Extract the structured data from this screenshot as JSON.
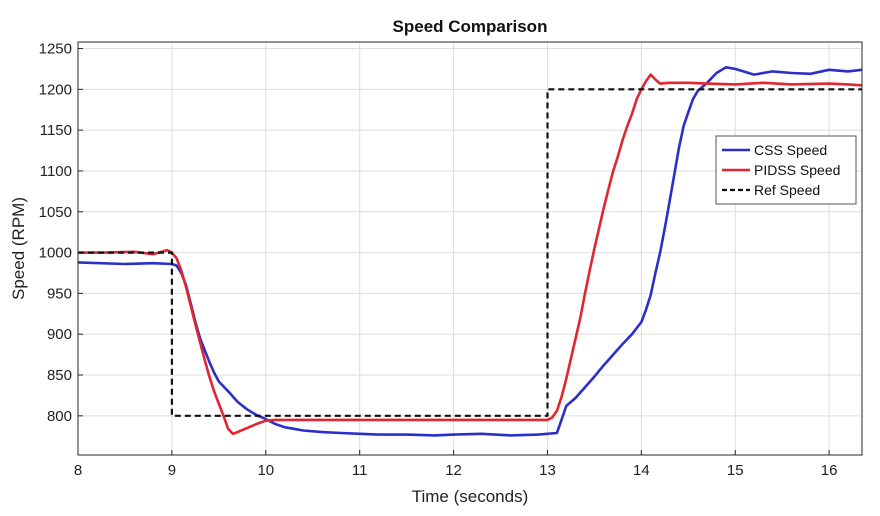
{
  "chart_data": {
    "type": "line",
    "title": "Speed Comparison",
    "xlabel": "Time (seconds)",
    "ylabel": "Speed (RPM)",
    "xlim": [
      8,
      16.35
    ],
    "ylim": [
      752,
      1258
    ],
    "xticks": [
      8,
      9,
      10,
      11,
      12,
      13,
      14,
      15,
      16
    ],
    "yticks": [
      800,
      850,
      900,
      950,
      1000,
      1050,
      1100,
      1150,
      1200,
      1250
    ],
    "grid": true,
    "legend_position": "right",
    "series": [
      {
        "name": "CSS Speed",
        "color": "#2b2fc9",
        "style": "solid",
        "points": [
          [
            8.0,
            988
          ],
          [
            8.5,
            986
          ],
          [
            8.8,
            987
          ],
          [
            9.0,
            986
          ],
          [
            9.05,
            984
          ],
          [
            9.1,
            975
          ],
          [
            9.15,
            960
          ],
          [
            9.2,
            938
          ],
          [
            9.25,
            915
          ],
          [
            9.3,
            895
          ],
          [
            9.35,
            880
          ],
          [
            9.4,
            866
          ],
          [
            9.45,
            853
          ],
          [
            9.5,
            842
          ],
          [
            9.6,
            830
          ],
          [
            9.7,
            817
          ],
          [
            9.8,
            808
          ],
          [
            9.9,
            801
          ],
          [
            10.0,
            796
          ],
          [
            10.1,
            790
          ],
          [
            10.2,
            786
          ],
          [
            10.4,
            782
          ],
          [
            10.6,
            780
          ],
          [
            10.8,
            779
          ],
          [
            11.0,
            778
          ],
          [
            11.2,
            777
          ],
          [
            11.5,
            777
          ],
          [
            11.8,
            776
          ],
          [
            12.0,
            777
          ],
          [
            12.3,
            778
          ],
          [
            12.6,
            776
          ],
          [
            12.9,
            777
          ],
          [
            13.1,
            779
          ],
          [
            13.15,
            795
          ],
          [
            13.2,
            812
          ],
          [
            13.3,
            822
          ],
          [
            13.4,
            835
          ],
          [
            13.5,
            848
          ],
          [
            13.6,
            862
          ],
          [
            13.7,
            875
          ],
          [
            13.8,
            888
          ],
          [
            13.9,
            900
          ],
          [
            14.0,
            915
          ],
          [
            14.05,
            930
          ],
          [
            14.1,
            948
          ],
          [
            14.15,
            975
          ],
          [
            14.2,
            1000
          ],
          [
            14.25,
            1030
          ],
          [
            14.3,
            1062
          ],
          [
            14.35,
            1095
          ],
          [
            14.4,
            1128
          ],
          [
            14.45,
            1155
          ],
          [
            14.5,
            1172
          ],
          [
            14.55,
            1188
          ],
          [
            14.6,
            1198
          ],
          [
            14.7,
            1208
          ],
          [
            14.8,
            1220
          ],
          [
            14.9,
            1227
          ],
          [
            15.0,
            1225
          ],
          [
            15.2,
            1218
          ],
          [
            15.4,
            1222
          ],
          [
            15.6,
            1220
          ],
          [
            15.8,
            1219
          ],
          [
            16.0,
            1224
          ],
          [
            16.2,
            1222
          ],
          [
            16.35,
            1224
          ]
        ]
      },
      {
        "name": "PIDSS Speed",
        "color": "#e02631",
        "style": "solid",
        "points": [
          [
            8.0,
            1000
          ],
          [
            8.3,
            1000
          ],
          [
            8.6,
            1001
          ],
          [
            8.8,
            998
          ],
          [
            8.95,
            1003
          ],
          [
            9.0,
            1000
          ],
          [
            9.05,
            993
          ],
          [
            9.1,
            978
          ],
          [
            9.15,
            958
          ],
          [
            9.2,
            935
          ],
          [
            9.25,
            912
          ],
          [
            9.3,
            890
          ],
          [
            9.35,
            868
          ],
          [
            9.4,
            848
          ],
          [
            9.45,
            830
          ],
          [
            9.5,
            815
          ],
          [
            9.55,
            800
          ],
          [
            9.6,
            784
          ],
          [
            9.65,
            778
          ],
          [
            9.7,
            780
          ],
          [
            9.8,
            785
          ],
          [
            9.9,
            790
          ],
          [
            10.0,
            794
          ],
          [
            10.1,
            795
          ],
          [
            10.5,
            795
          ],
          [
            11.0,
            795
          ],
          [
            11.5,
            795
          ],
          [
            12.0,
            795
          ],
          [
            12.5,
            795
          ],
          [
            13.0,
            795
          ],
          [
            13.05,
            798
          ],
          [
            13.1,
            806
          ],
          [
            13.15,
            823
          ],
          [
            13.2,
            845
          ],
          [
            13.25,
            870
          ],
          [
            13.3,
            895
          ],
          [
            13.35,
            920
          ],
          [
            13.4,
            950
          ],
          [
            13.45,
            978
          ],
          [
            13.5,
            1005
          ],
          [
            13.55,
            1030
          ],
          [
            13.6,
            1055
          ],
          [
            13.65,
            1078
          ],
          [
            13.7,
            1100
          ],
          [
            13.75,
            1118
          ],
          [
            13.8,
            1138
          ],
          [
            13.85,
            1155
          ],
          [
            13.9,
            1170
          ],
          [
            13.95,
            1188
          ],
          [
            14.0,
            1200
          ],
          [
            14.05,
            1210
          ],
          [
            14.1,
            1218
          ],
          [
            14.15,
            1212
          ],
          [
            14.2,
            1207
          ],
          [
            14.3,
            1208
          ],
          [
            14.5,
            1208
          ],
          [
            14.7,
            1207
          ],
          [
            15.0,
            1206
          ],
          [
            15.3,
            1208
          ],
          [
            15.6,
            1206
          ],
          [
            16.0,
            1207
          ],
          [
            16.2,
            1206
          ],
          [
            16.35,
            1205
          ]
        ]
      },
      {
        "name": "Ref Speed",
        "color": "#111111",
        "style": "dashed",
        "points": [
          [
            8.0,
            1000
          ],
          [
            9.0,
            1000
          ],
          [
            9.0,
            800
          ],
          [
            13.0,
            800
          ],
          [
            13.0,
            1200
          ],
          [
            16.35,
            1200
          ]
        ]
      }
    ]
  }
}
